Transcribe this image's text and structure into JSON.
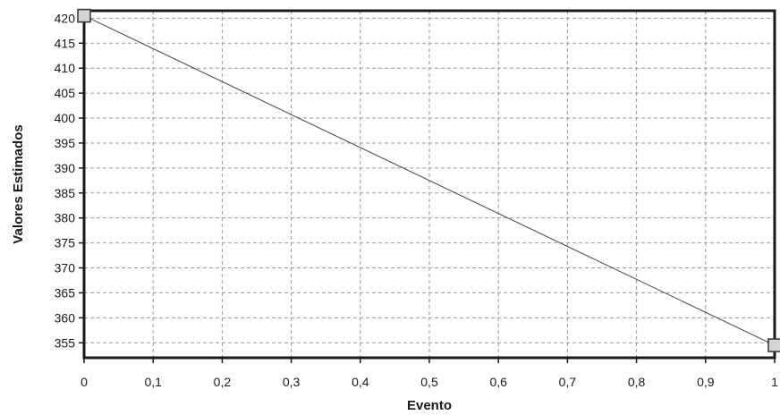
{
  "chart_data": {
    "type": "line",
    "xlabel": "Evento",
    "ylabel": "Valores Estimados",
    "xlim": [
      0,
      1
    ],
    "ylim": [
      352,
      421.5
    ],
    "x_ticks": [
      0,
      0.1,
      0.2,
      0.3,
      0.4,
      0.5,
      0.6,
      0.7,
      0.8,
      0.9,
      1
    ],
    "x_tick_labels": [
      "0",
      "0,1",
      "0,2",
      "0,3",
      "0,4",
      "0,5",
      "0,6",
      "0,7",
      "0,8",
      "0,9",
      "1"
    ],
    "y_ticks": [
      355,
      360,
      365,
      370,
      375,
      380,
      385,
      390,
      395,
      400,
      405,
      410,
      415,
      420
    ],
    "y_tick_labels": [
      "355",
      "360",
      "365",
      "370",
      "375",
      "380",
      "385",
      "390",
      "395",
      "400",
      "405",
      "410",
      "415",
      "420"
    ],
    "grid": true,
    "series": [
      {
        "x": [
          0,
          1
        ],
        "y": [
          420.5,
          354.5
        ],
        "color": "#444444",
        "marker_color": "#d4d4d4"
      }
    ]
  }
}
